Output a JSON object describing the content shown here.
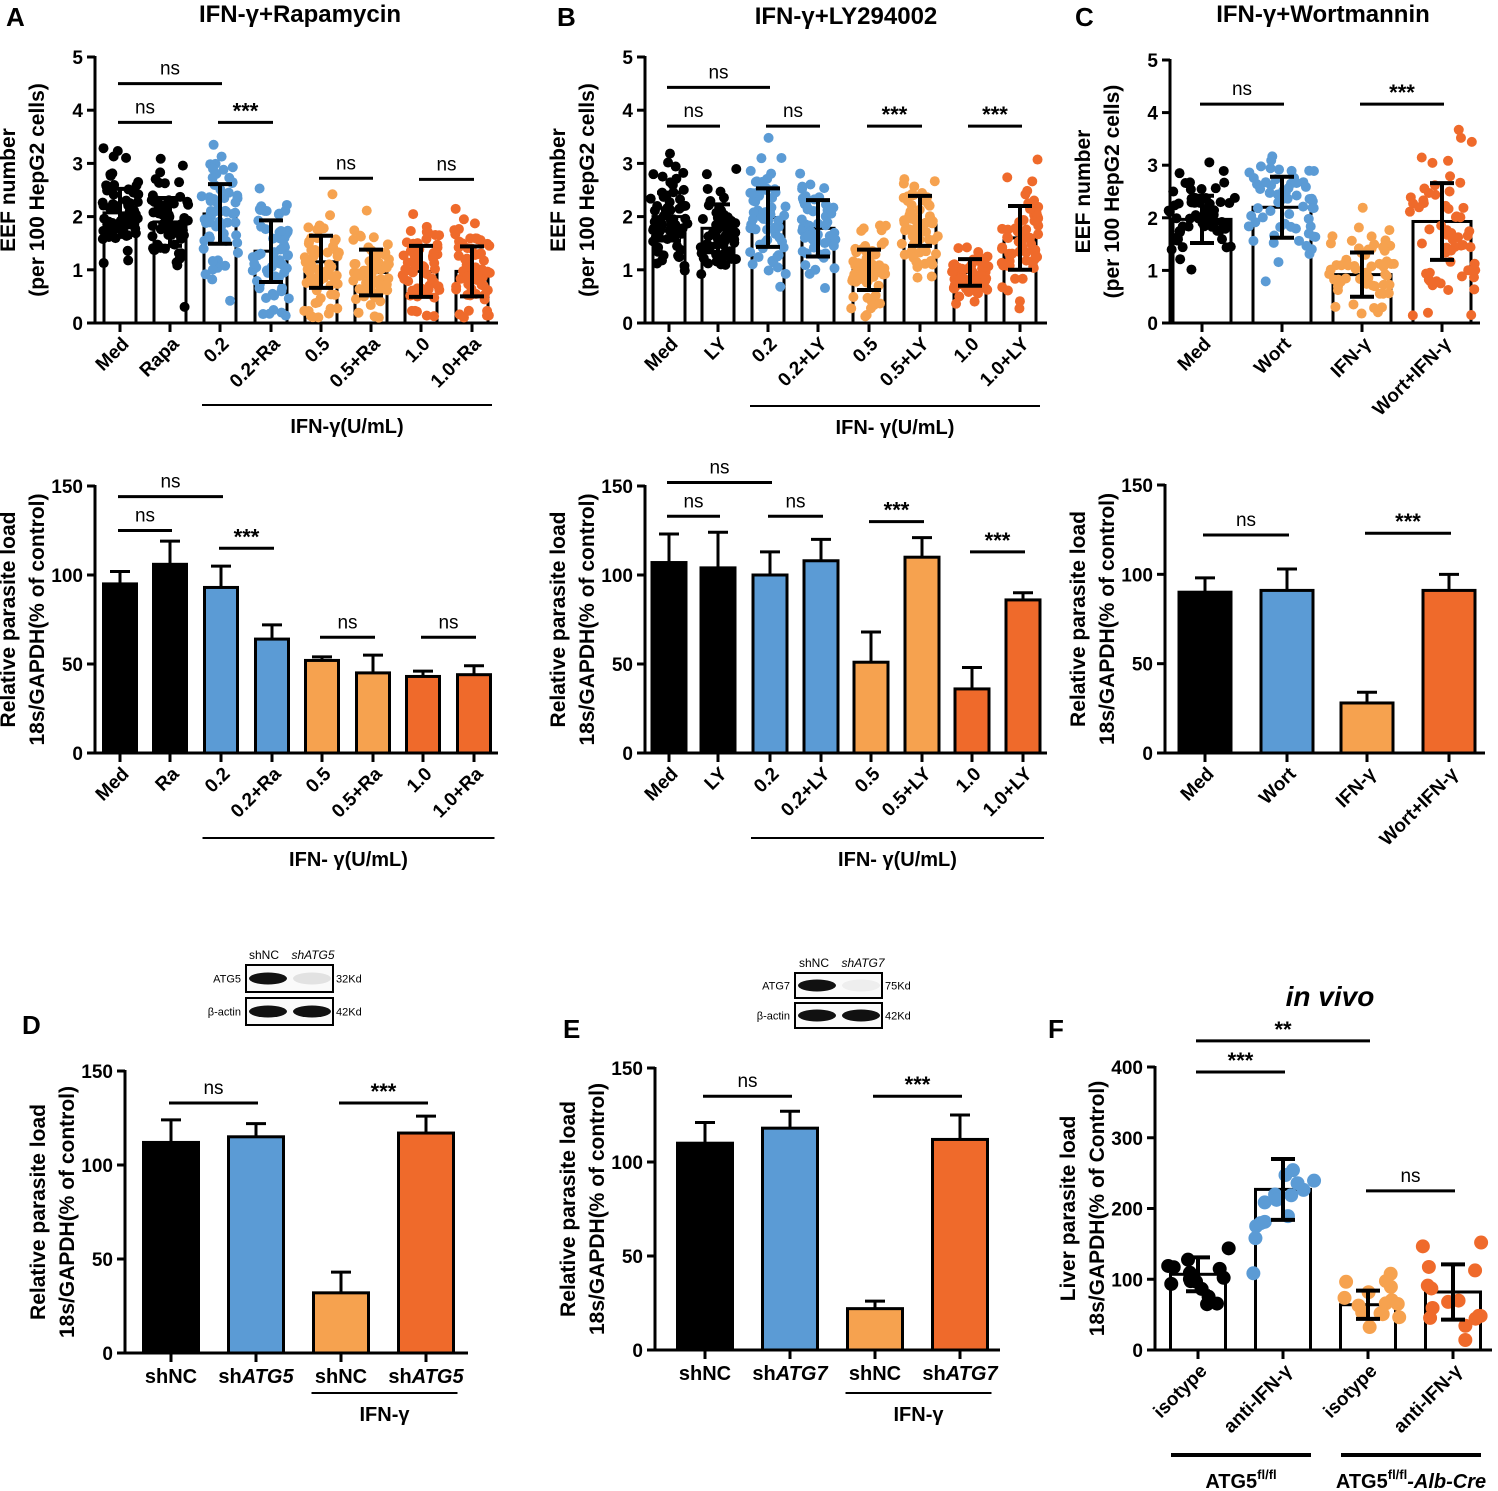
{
  "panels": {
    "A": {
      "letter": "A",
      "title": "IFN-γ+Rapamycin"
    },
    "B": {
      "letter": "B",
      "title": "IFN-γ+LY294002"
    },
    "C": {
      "letter": "C",
      "title": "IFN-γ+Wortmannin"
    },
    "D": {
      "letter": "D"
    },
    "E": {
      "letter": "E"
    },
    "F": {
      "letter": "F",
      "title": "in vivo"
    }
  },
  "colors": {
    "black": "#000000",
    "blue": "#5b9bd5",
    "light_orange": "#f6a24f",
    "orange": "#ef6a2b"
  },
  "western_blots": [
    {
      "columns": [
        "shNC",
        "shATG5"
      ],
      "rows": [
        {
          "label": "ATG5",
          "size": "32Kd",
          "bands": [
            1,
            0.1
          ]
        },
        {
          "label": "β-actin",
          "size": "42Kd",
          "bands": [
            1,
            1
          ]
        }
      ]
    },
    {
      "columns": [
        "shNC",
        "shATG7"
      ],
      "rows": [
        {
          "label": "ATG7",
          "size": "75Kd",
          "bands": [
            1,
            0.05
          ]
        },
        {
          "label": "β-actin",
          "size": "42Kd",
          "bands": [
            1,
            1
          ]
        }
      ]
    }
  ],
  "chart_data": [
    {
      "id": "A_top",
      "type": "bar",
      "style": "scatter-bar",
      "ylabel": [
        "EEF number",
        "(per 100 HepG2 cells)"
      ],
      "ylim": [
        0,
        5
      ],
      "yticks": [
        0,
        1,
        2,
        3,
        4,
        5
      ],
      "categories": [
        "Med",
        "Rapa",
        "0.2",
        "0.2+Ra",
        "0.5",
        "0.5+Ra",
        "1.0",
        "1.0+Ra"
      ],
      "values": [
        2.07,
        1.9,
        2.05,
        1.35,
        1.15,
        0.95,
        0.97,
        0.97
      ],
      "errors": [
        0.45,
        0.45,
        0.56,
        0.58,
        0.49,
        0.43,
        0.48,
        0.47
      ],
      "colors": [
        "black",
        "black",
        "blue",
        "blue",
        "light_orange",
        "light_orange",
        "orange",
        "orange"
      ],
      "n_points": 60,
      "group": {
        "label": "IFN-γ(U/mL)",
        "from": 2,
        "to": 7
      },
      "significance": [
        {
          "from": 0,
          "to": 2,
          "y": 4.5,
          "label": "ns"
        },
        {
          "from": 0,
          "to": 1,
          "y": 3.77,
          "label": "ns"
        },
        {
          "from": 2,
          "to": 3,
          "y": 3.77,
          "label": "***"
        },
        {
          "from": 4,
          "to": 5,
          "y": 2.72,
          "label": "ns"
        },
        {
          "from": 6,
          "to": 7,
          "y": 2.7,
          "label": "ns"
        }
      ]
    },
    {
      "id": "B_top",
      "type": "bar",
      "style": "scatter-bar",
      "ylabel": [
        "EEF number",
        "(per 100 HepG2 cells)"
      ],
      "ylim": [
        0,
        5
      ],
      "yticks": [
        0,
        1,
        2,
        3,
        4,
        5
      ],
      "categories": [
        "Med",
        "LY",
        "0.2",
        "0.2+LY",
        "0.5",
        "0.5+LY",
        "1.0",
        "1.0+LY"
      ],
      "values": [
        2.0,
        1.78,
        1.98,
        1.78,
        1.0,
        1.92,
        0.95,
        1.6
      ],
      "errors": [
        0.45,
        0.45,
        0.55,
        0.53,
        0.38,
        0.47,
        0.25,
        0.6
      ],
      "colors": [
        "black",
        "black",
        "blue",
        "blue",
        "light_orange",
        "light_orange",
        "orange",
        "orange"
      ],
      "n_points": 60,
      "group": {
        "label": "IFN- γ(U/mL)",
        "from": 2,
        "to": 7
      },
      "significance": [
        {
          "from": 0,
          "to": 2,
          "y": 4.43,
          "label": "ns"
        },
        {
          "from": 0,
          "to": 1,
          "y": 3.7,
          "label": "ns"
        },
        {
          "from": 2,
          "to": 3,
          "y": 3.7,
          "label": "ns"
        },
        {
          "from": 4,
          "to": 5,
          "y": 3.7,
          "label": "***"
        },
        {
          "from": 6,
          "to": 7,
          "y": 3.7,
          "label": "***"
        }
      ]
    },
    {
      "id": "C_top",
      "type": "bar",
      "style": "scatter-bar",
      "ylabel": [
        "EEF number",
        "(per 100 HepG2 cells)"
      ],
      "ylim": [
        0,
        5
      ],
      "yticks": [
        0,
        1,
        2,
        3,
        4,
        5
      ],
      "categories": [
        "Med",
        "Wort",
        "IFN-γ",
        "Wort+IFN-γ"
      ],
      "values": [
        1.97,
        2.2,
        0.92,
        1.93
      ],
      "errors": [
        0.45,
        0.58,
        0.42,
        0.73
      ],
      "colors": [
        "black",
        "blue",
        "light_orange",
        "orange"
      ],
      "n_points": 60,
      "significance": [
        {
          "from": 0,
          "to": 1,
          "y": 4.16,
          "label": "ns"
        },
        {
          "from": 2,
          "to": 3,
          "y": 4.16,
          "label": "***"
        }
      ]
    },
    {
      "id": "A_bottom",
      "type": "bar",
      "style": "filled-bar",
      "ylabel": [
        "Relative parasite load",
        "18s/GAPDH(% of control)"
      ],
      "ylim": [
        0,
        150
      ],
      "yticks": [
        0,
        50,
        100,
        150
      ],
      "categories": [
        "Med",
        "Ra",
        "0.2",
        "0.2+Ra",
        "0.5",
        "0.5+Ra",
        "1.0",
        "1.0+Ra"
      ],
      "values": [
        95,
        106,
        93,
        64,
        52,
        45,
        43,
        44
      ],
      "errors": [
        7,
        13,
        12,
        8,
        2,
        10,
        3,
        5
      ],
      "colors": [
        "black",
        "black",
        "blue",
        "blue",
        "light_orange",
        "light_orange",
        "orange",
        "orange"
      ],
      "group": {
        "label": "IFN- γ(U/mL)",
        "from": 2,
        "to": 7
      },
      "significance": [
        {
          "from": 0,
          "to": 2,
          "y": 144,
          "label": "ns"
        },
        {
          "from": 0,
          "to": 1,
          "y": 125,
          "label": "ns"
        },
        {
          "from": 2,
          "to": 3,
          "y": 115,
          "label": "***"
        },
        {
          "from": 4,
          "to": 5,
          "y": 65,
          "label": "ns"
        },
        {
          "from": 6,
          "to": 7,
          "y": 65,
          "label": "ns"
        }
      ]
    },
    {
      "id": "B_bottom",
      "type": "bar",
      "style": "filled-bar",
      "ylabel": [
        "Relative parasite load",
        "18s/GAPDH(% of control)"
      ],
      "ylim": [
        0,
        150
      ],
      "yticks": [
        0,
        50,
        100,
        150
      ],
      "categories": [
        "Med",
        "LY",
        "0.2",
        "0.2+LY",
        "0.5",
        "0.5+LY",
        "1.0",
        "1.0+LY"
      ],
      "values": [
        107,
        104,
        100,
        108,
        51,
        110,
        36,
        86
      ],
      "errors": [
        16,
        20,
        13,
        12,
        17,
        11,
        12,
        4
      ],
      "colors": [
        "black",
        "black",
        "blue",
        "blue",
        "light_orange",
        "light_orange",
        "orange",
        "orange"
      ],
      "group": {
        "label": "IFN- γ(U/mL)",
        "from": 2,
        "to": 7
      },
      "significance": [
        {
          "from": 0,
          "to": 2,
          "y": 152,
          "label": "ns"
        },
        {
          "from": 0,
          "to": 1,
          "y": 133,
          "label": "ns"
        },
        {
          "from": 2,
          "to": 3,
          "y": 133,
          "label": "ns"
        },
        {
          "from": 4,
          "to": 5,
          "y": 130,
          "label": "***"
        },
        {
          "from": 6,
          "to": 7,
          "y": 113,
          "label": "***"
        }
      ]
    },
    {
      "id": "C_bottom",
      "type": "bar",
      "style": "filled-bar",
      "ylabel": [
        "Relative parasite load",
        "18s/GAPDH(% of control)"
      ],
      "ylim": [
        0,
        150
      ],
      "yticks": [
        0,
        50,
        100,
        150
      ],
      "categories": [
        "Med",
        "Wort",
        "IFN-γ",
        "Wort+IFN-γ"
      ],
      "values": [
        90,
        91,
        28,
        91
      ],
      "errors": [
        8,
        12,
        6,
        9
      ],
      "colors": [
        "black",
        "blue",
        "light_orange",
        "orange"
      ],
      "significance": [
        {
          "from": 0,
          "to": 1,
          "y": 122,
          "label": "ns"
        },
        {
          "from": 2,
          "to": 3,
          "y": 123,
          "label": "***"
        }
      ]
    },
    {
      "id": "D",
      "type": "bar",
      "style": "filled-bar",
      "ylabel": [
        "Relative parasite load",
        "18s/GAPDH(% of control)"
      ],
      "ylim": [
        0,
        150
      ],
      "yticks": [
        0,
        50,
        100,
        150
      ],
      "categories": [
        "shNC",
        "shATG5",
        "shNC",
        "shATG5"
      ],
      "values": [
        112,
        115,
        32,
        117
      ],
      "errors": [
        12,
        7,
        11,
        9
      ],
      "colors": [
        "black",
        "blue",
        "light_orange",
        "orange"
      ],
      "group": {
        "label": "IFN-γ",
        "from": 2,
        "to": 3
      },
      "significance": [
        {
          "from": 0,
          "to": 1,
          "y": 133,
          "label": "ns"
        },
        {
          "from": 2,
          "to": 3,
          "y": 133,
          "label": "***"
        }
      ]
    },
    {
      "id": "E",
      "type": "bar",
      "style": "filled-bar",
      "ylabel": [
        "Relative parasite load",
        "18s/GAPDH(% of control)"
      ],
      "ylim": [
        0,
        150
      ],
      "yticks": [
        0,
        50,
        100,
        150
      ],
      "categories": [
        "shNC",
        "shATG7",
        "shNC",
        "shATG7"
      ],
      "values": [
        110,
        118,
        22,
        112
      ],
      "errors": [
        11,
        9,
        4,
        13
      ],
      "colors": [
        "black",
        "blue",
        "light_orange",
        "orange"
      ],
      "group": {
        "label": "IFN-γ",
        "from": 2,
        "to": 3
      },
      "significance": [
        {
          "from": 0,
          "to": 1,
          "y": 135,
          "label": "ns"
        },
        {
          "from": 2,
          "to": 3,
          "y": 135,
          "label": "***"
        }
      ]
    },
    {
      "id": "F",
      "type": "bar",
      "style": "scatter-bar",
      "title": "in vivo",
      "ylabel": [
        "Liver parasite load",
        "18s/GAPDH(% of Control)"
      ],
      "ylim": [
        0,
        400
      ],
      "yticks": [
        0,
        100,
        200,
        300,
        400
      ],
      "categories": [
        "isotype",
        "anti-IFN-γ",
        "isotype",
        "anti-IFN-γ"
      ],
      "values": [
        107,
        227,
        64,
        82
      ],
      "errors": [
        24,
        43,
        20,
        39
      ],
      "colors": [
        "black",
        "blue",
        "light_orange",
        "orange"
      ],
      "n_points": 15,
      "groups": [
        {
          "label": "ATG5",
          "sup": "fl/fl",
          "suffix": "",
          "from": 0,
          "to": 1
        },
        {
          "label": "ATG5",
          "sup": "fl/fl",
          "suffix": "-Alb-Cre",
          "from": 2,
          "to": 3
        }
      ],
      "significance": [
        {
          "from": 0,
          "to": 2,
          "y": 437,
          "label": "**"
        },
        {
          "from": 0,
          "to": 1,
          "y": 393,
          "label": "***"
        },
        {
          "from": 2,
          "to": 3,
          "y": 225,
          "label": "ns"
        }
      ]
    }
  ]
}
